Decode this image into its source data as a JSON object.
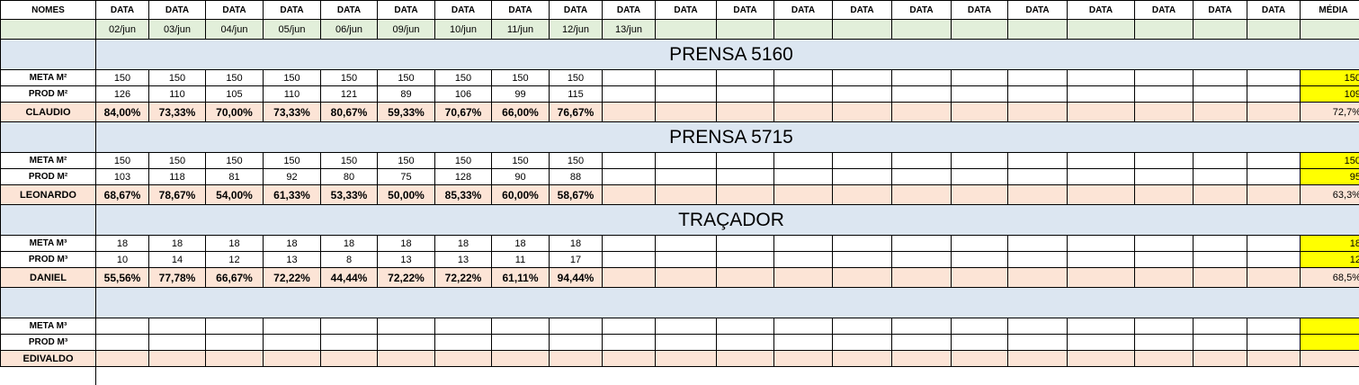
{
  "colors": {
    "date_row": "#e2efda",
    "section_band": "#dce6f1",
    "percent_row": "#fce4d6",
    "average_highlight": "#ffff00"
  },
  "header": {
    "nomes": "NOMES",
    "data": [
      "DATA",
      "DATA",
      "DATA",
      "DATA",
      "DATA",
      "DATA",
      "DATA",
      "DATA",
      "DATA",
      "DATA",
      "DATA",
      "DATA",
      "DATA",
      "DATA",
      "DATA",
      "DATA",
      "DATA",
      "DATA",
      "DATA",
      "DATA",
      "DATA",
      "DATA"
    ],
    "media": "MÉDIA"
  },
  "dates": [
    "02/jun",
    "03/jun",
    "04/jun",
    "05/jun",
    "06/jun",
    "09/jun",
    "10/jun",
    "11/jun",
    "12/jun",
    "13/jun"
  ],
  "sections": [
    {
      "title": "PRENSA 5160",
      "meta_label": "META M²",
      "prod_label": "PROD M²",
      "name": "CLAUDIO",
      "meta": [
        "150",
        "150",
        "150",
        "150",
        "150",
        "150",
        "150",
        "150",
        "150"
      ],
      "prod": [
        "126",
        "110",
        "105",
        "110",
        "121",
        "89",
        "106",
        "99",
        "115"
      ],
      "pct": [
        "84,00%",
        "73,33%",
        "70,00%",
        "73,33%",
        "80,67%",
        "59,33%",
        "70,67%",
        "66,00%",
        "76,67%"
      ],
      "avg_meta": "150",
      "avg_prod": "109",
      "avg_pct": "72,7%"
    },
    {
      "title": "PRENSA 5715",
      "meta_label": "META M²",
      "prod_label": "PROD M²",
      "name": "LEONARDO",
      "meta": [
        "150",
        "150",
        "150",
        "150",
        "150",
        "150",
        "150",
        "150",
        "150"
      ],
      "prod": [
        "103",
        "118",
        "81",
        "92",
        "80",
        "75",
        "128",
        "90",
        "88"
      ],
      "pct": [
        "68,67%",
        "78,67%",
        "54,00%",
        "61,33%",
        "53,33%",
        "50,00%",
        "85,33%",
        "60,00%",
        "58,67%"
      ],
      "avg_meta": "150",
      "avg_prod": "95",
      "avg_pct": "63,3%"
    },
    {
      "title": "TRAÇADOR",
      "meta_label": "META M³",
      "prod_label": "PROD M³",
      "name": "DANIEL",
      "meta": [
        "18",
        "18",
        "18",
        "18",
        "18",
        "18",
        "18",
        "18",
        "18"
      ],
      "prod": [
        "10",
        "14",
        "12",
        "13",
        "8",
        "13",
        "13",
        "11",
        "17"
      ],
      "pct": [
        "55,56%",
        "77,78%",
        "66,67%",
        "72,22%",
        "44,44%",
        "72,22%",
        "72,22%",
        "61,11%",
        "94,44%"
      ],
      "avg_meta": "18",
      "avg_prod": "12",
      "avg_pct": "68,5%"
    },
    {
      "title": "",
      "meta_label": "META M³",
      "prod_label": "PROD M³",
      "name": "EDIVALDO",
      "meta": [],
      "prod": [],
      "pct": [],
      "avg_meta": "",
      "avg_prod": "",
      "avg_pct": ""
    }
  ]
}
